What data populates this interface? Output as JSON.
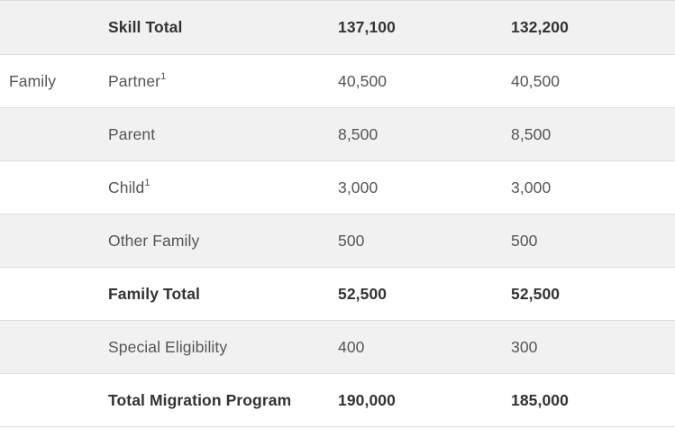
{
  "rows": [
    {
      "category": "",
      "type": "Skill Total",
      "sup": "",
      "y1": "137,100",
      "y2": "132,200",
      "bold": true,
      "shaded": true
    },
    {
      "category": "Family",
      "type": "Partner",
      "sup": "1",
      "y1": "40,500",
      "y2": "40,500",
      "bold": false,
      "shaded": false
    },
    {
      "category": "",
      "type": "Parent",
      "sup": "",
      "y1": "8,500",
      "y2": "8,500",
      "bold": false,
      "shaded": true
    },
    {
      "category": "",
      "type": "Child",
      "sup": "1",
      "y1": "3,000",
      "y2": "3,000",
      "bold": false,
      "shaded": false
    },
    {
      "category": "",
      "type": "Other Family",
      "sup": "",
      "y1": "500",
      "y2": "500",
      "bold": false,
      "shaded": true
    },
    {
      "category": "",
      "type": "Family Total",
      "sup": "",
      "y1": "52,500",
      "y2": "52,500",
      "bold": true,
      "shaded": false
    },
    {
      "category": "",
      "type": "Special Eligibility",
      "sup": "",
      "y1": "400",
      "y2": "300",
      "bold": false,
      "shaded": true
    },
    {
      "category": "",
      "type": "Total Migration Program",
      "sup": "",
      "y1": "190,000",
      "y2": "185,000",
      "bold": true,
      "shaded": false
    }
  ]
}
